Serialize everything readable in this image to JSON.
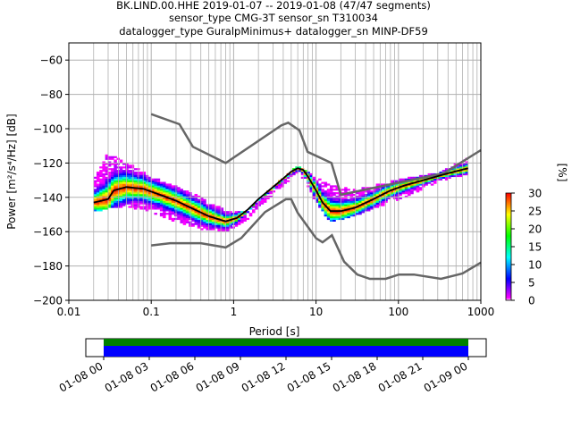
{
  "title": {
    "line1": "BK.LIND.00.HHE   2019-01-07 -- 2019-01-08  (47/47 segments)",
    "line2": "sensor_type CMG-3T sensor_sn T310034",
    "line3": "datalogger_type GuralpMinimus+ datalogger_sn MINP-DF59"
  },
  "chart_data": {
    "type": "heatmap",
    "subtype": "probabilistic-power-spectral-density",
    "xlabel": "Period [s]",
    "ylabel": "Power [m²/s⁴/Hz] [dB]",
    "x_scale": "log",
    "xlim": [
      0.01,
      1000
    ],
    "ylim": [
      -200,
      -50
    ],
    "grid": true,
    "x_ticks": [
      {
        "value": 0.01,
        "label": "0.01"
      },
      {
        "value": 0.1,
        "label": "0.1"
      },
      {
        "value": 1,
        "label": "1"
      },
      {
        "value": 10,
        "label": "10"
      },
      {
        "value": 100,
        "label": "100"
      },
      {
        "value": 1000,
        "label": "1000"
      }
    ],
    "y_ticks": [
      {
        "value": -60,
        "label": "−60"
      },
      {
        "value": -80,
        "label": "−80"
      },
      {
        "value": -100,
        "label": "−100"
      },
      {
        "value": -120,
        "label": "−120"
      },
      {
        "value": -140,
        "label": "−140"
      },
      {
        "value": -160,
        "label": "−160"
      },
      {
        "value": -180,
        "label": "−180"
      },
      {
        "value": -200,
        "label": "−200"
      }
    ],
    "colorbar": {
      "label": "[%]",
      "range": [
        0,
        30
      ],
      "ticks": [
        {
          "value": 0,
          "label": "0"
        },
        {
          "value": 5,
          "label": "5"
        },
        {
          "value": 10,
          "label": "10"
        },
        {
          "value": 15,
          "label": "15"
        },
        {
          "value": 20,
          "label": "20"
        },
        {
          "value": 25,
          "label": "25"
        },
        {
          "value": 30,
          "label": "30"
        }
      ],
      "colors": [
        "#ffffff",
        "#ff00ff",
        "#0000ff",
        "#00ffff",
        "#00ff00",
        "#ffff00",
        "#ff7f00",
        "#ff0000"
      ]
    },
    "noise_models": [
      {
        "name": "NHNM",
        "color": "#666666",
        "x": [
          0.1,
          0.22,
          0.32,
          0.8,
          3.8,
          4.6,
          6.3,
          7.9,
          15.4,
          20,
          354.8,
          1000
        ],
        "y": [
          -91.5,
          -97.4,
          -110.5,
          -120,
          -98,
          -96.5,
          -101,
          -113.5,
          -120,
          -138.5,
          -126,
          -112.5
        ]
      },
      {
        "name": "NLNM",
        "color": "#666666",
        "x": [
          0.1,
          0.17,
          0.4,
          0.8,
          1.24,
          2.4,
          4.3,
          5,
          6,
          10,
          12,
          15.6,
          21.9,
          31.6,
          45,
          70,
          101,
          154,
          328,
          600,
          1000
        ],
        "y": [
          -168,
          -166.7,
          -166.7,
          -169.2,
          -163.7,
          -148.6,
          -141.1,
          -141.1,
          -149,
          -163.8,
          -166.2,
          -162.1,
          -177.5,
          -185,
          -187.5,
          -187.5,
          -185,
          -185,
          -187.5,
          -184.4,
          -178
        ]
      }
    ],
    "median": {
      "color": "#000000",
      "x": [
        0.02,
        0.025,
        0.03,
        0.035,
        0.05,
        0.08,
        0.12,
        0.2,
        0.3,
        0.5,
        0.8,
        1.1,
        1.5,
        2,
        3,
        4,
        5,
        6,
        7,
        8,
        10,
        12,
        15,
        20,
        30,
        50,
        80,
        120,
        200,
        400,
        700
      ],
      "y": [
        -143,
        -142,
        -141,
        -136,
        -134,
        -135,
        -138,
        -142,
        -146,
        -151,
        -154,
        -152,
        -147,
        -141,
        -134,
        -129,
        -125,
        -123,
        -124,
        -128,
        -136,
        -143,
        -148,
        -148,
        -146,
        -141,
        -136,
        -133,
        -130,
        -126,
        -123
      ]
    },
    "density_spread": {
      "x": [
        0.02,
        0.03,
        0.05,
        0.1,
        0.2,
        0.4,
        0.8,
        1.5,
        3,
        6,
        10,
        15,
        30,
        100,
        300,
        700
      ],
      "upper": [
        -130,
        -114,
        -120,
        -128,
        -134,
        -140,
        -148,
        -148,
        -134,
        -122,
        -128,
        -133,
        -136,
        -130,
        -126,
        -117
      ],
      "lower": [
        -148,
        -146,
        -145,
        -148,
        -154,
        -158,
        -160,
        -152,
        -138,
        -125,
        -143,
        -154,
        -150,
        -141,
        -131,
        -126
      ]
    },
    "time_axis": {
      "ticks": [
        "01-08 00",
        "01-08 03",
        "01-08 06",
        "01-08 09",
        "01-08 12",
        "01-08 15",
        "01-08 18",
        "01-08 21",
        "01-09 00"
      ],
      "coverage_color": "#0000ff",
      "gap_color": "#008000"
    }
  }
}
